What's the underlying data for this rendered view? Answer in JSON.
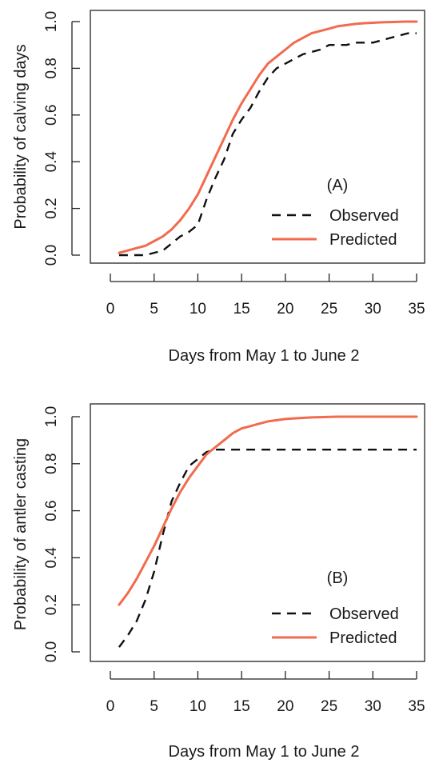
{
  "chart_data": [
    {
      "type": "line",
      "panel_label": "(A)",
      "xlabel": "Days from May 1 to June 2",
      "ylabel": "Probability of calving days",
      "xlim": [
        0,
        35
      ],
      "ylim": [
        0.0,
        1.0
      ],
      "x_ticks": [
        "0",
        "5",
        "10",
        "15",
        "20",
        "25",
        "30",
        "35"
      ],
      "y_ticks": [
        "0.0",
        "0.2",
        "0.4",
        "0.6",
        "0.8",
        "1.0"
      ],
      "legend_position": "bottom-right",
      "grid": false,
      "series": [
        {
          "name": "Observed",
          "style": "dashed",
          "color": "#111111",
          "x": [
            1,
            2,
            3,
            4,
            5,
            6,
            7,
            8,
            9,
            10,
            11,
            12,
            13,
            14,
            15,
            16,
            17,
            18,
            19,
            20,
            21,
            22,
            23,
            24,
            25,
            26,
            27,
            28,
            29,
            30,
            31,
            32,
            33,
            34,
            35
          ],
          "y": [
            0.0,
            0.0,
            0.0,
            0.0,
            0.01,
            0.02,
            0.05,
            0.08,
            0.1,
            0.13,
            0.24,
            0.33,
            0.41,
            0.52,
            0.58,
            0.63,
            0.7,
            0.76,
            0.8,
            0.82,
            0.84,
            0.86,
            0.87,
            0.88,
            0.9,
            0.9,
            0.9,
            0.91,
            0.91,
            0.91,
            0.92,
            0.93,
            0.94,
            0.95,
            0.95
          ]
        },
        {
          "name": "Predicted",
          "style": "solid",
          "color": "#f26b4f",
          "x": [
            1,
            2,
            3,
            4,
            5,
            6,
            7,
            8,
            9,
            10,
            11,
            12,
            13,
            14,
            15,
            16,
            17,
            18,
            19,
            20,
            21,
            22,
            23,
            24,
            25,
            26,
            27,
            28,
            29,
            30,
            31,
            32,
            33,
            34,
            35
          ],
          "y": [
            0.01,
            0.02,
            0.03,
            0.04,
            0.06,
            0.08,
            0.11,
            0.15,
            0.2,
            0.26,
            0.34,
            0.42,
            0.5,
            0.58,
            0.65,
            0.71,
            0.77,
            0.82,
            0.85,
            0.88,
            0.91,
            0.93,
            0.95,
            0.96,
            0.97,
            0.98,
            0.985,
            0.99,
            0.993,
            0.995,
            0.997,
            0.998,
            0.999,
            1.0,
            1.0
          ]
        }
      ]
    },
    {
      "type": "line",
      "panel_label": "(B)",
      "xlabel": "Days from May 1 to June 2",
      "ylabel": "Probability of antler casting",
      "xlim": [
        0,
        35
      ],
      "ylim": [
        0.0,
        1.0
      ],
      "x_ticks": [
        "0",
        "5",
        "10",
        "15",
        "20",
        "25",
        "30",
        "35"
      ],
      "y_ticks": [
        "0.0",
        "0.2",
        "0.4",
        "0.6",
        "0.8",
        "1.0"
      ],
      "legend_position": "bottom-right",
      "grid": false,
      "series": [
        {
          "name": "Observed",
          "style": "dashed",
          "color": "#111111",
          "x": [
            1,
            2,
            3,
            4,
            5,
            6,
            7,
            8,
            9,
            10,
            11,
            12,
            13,
            14,
            15,
            16,
            17,
            18,
            19,
            20,
            21,
            22,
            23,
            24,
            25,
            26,
            27,
            28,
            29,
            30,
            31,
            32,
            33,
            34,
            35
          ],
          "y": [
            0.02,
            0.07,
            0.13,
            0.22,
            0.34,
            0.5,
            0.64,
            0.72,
            0.79,
            0.82,
            0.85,
            0.86,
            0.86,
            0.86,
            0.86,
            0.86,
            0.86,
            0.86,
            0.86,
            0.86,
            0.86,
            0.86,
            0.86,
            0.86,
            0.86,
            0.86,
            0.86,
            0.86,
            0.86,
            0.86,
            0.86,
            0.86,
            0.86,
            0.86,
            0.86
          ]
        },
        {
          "name": "Predicted",
          "style": "solid",
          "color": "#f26b4f",
          "x": [
            1,
            2,
            3,
            4,
            5,
            6,
            7,
            8,
            9,
            10,
            11,
            12,
            13,
            14,
            15,
            16,
            17,
            18,
            19,
            20,
            21,
            22,
            23,
            24,
            25,
            26,
            27,
            28,
            29,
            30,
            31,
            32,
            33,
            34,
            35
          ],
          "y": [
            0.2,
            0.25,
            0.31,
            0.38,
            0.45,
            0.53,
            0.61,
            0.68,
            0.74,
            0.79,
            0.84,
            0.87,
            0.9,
            0.93,
            0.95,
            0.96,
            0.97,
            0.98,
            0.985,
            0.99,
            0.993,
            0.995,
            0.997,
            0.998,
            0.999,
            1.0,
            1.0,
            1.0,
            1.0,
            1.0,
            1.0,
            1.0,
            1.0,
            1.0,
            1.0
          ]
        }
      ]
    }
  ]
}
